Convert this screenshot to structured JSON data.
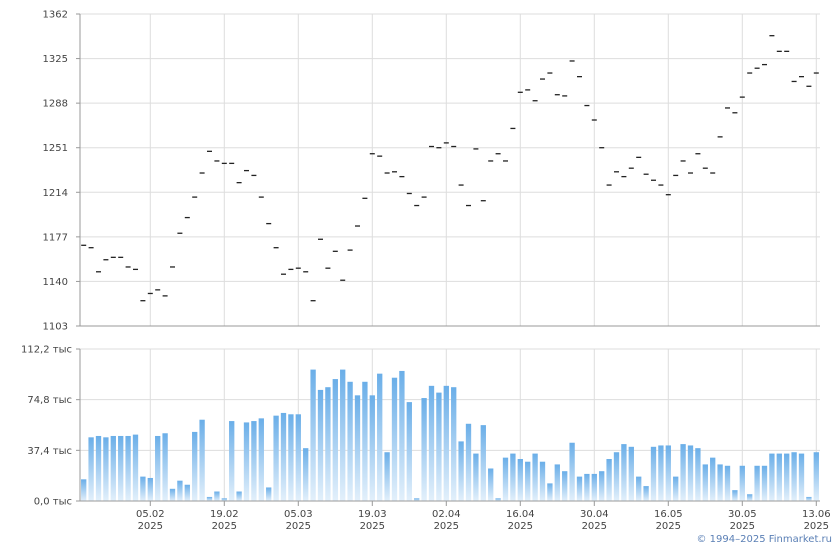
{
  "copyright": "© 1994–2025 Finmarket.ru",
  "colors": {
    "grid": "#dddddd",
    "axis": "#999999",
    "price_mark": "#222222",
    "bar_top": "#6aaee8",
    "bar_bottom": "#e3f0fb"
  },
  "chart_data": [
    {
      "type": "scatter",
      "ylim": [
        1103,
        1362
      ],
      "y_ticks": [
        "1362",
        "1325",
        "1288",
        "1251",
        "1214",
        "1177",
        "1140",
        "1103"
      ],
      "y_tick_values": [
        1362,
        1325,
        1288,
        1251,
        1214,
        1177,
        1140,
        1103
      ],
      "grid": true,
      "values": [
        1170,
        1168,
        1148,
        1158,
        1160,
        1160,
        1152,
        1150,
        1124,
        1130,
        1133,
        1128,
        1152,
        1180,
        1193,
        1210,
        1230,
        1248,
        1240,
        1238,
        1238,
        1222,
        1232,
        1228,
        1210,
        1188,
        1168,
        1146,
        1150,
        1151,
        1148,
        1124,
        1175,
        1151,
        1165,
        1141,
        1166,
        1186,
        1209,
        1246,
        1244,
        1230,
        1231,
        1227,
        1213,
        1203,
        1210,
        1252,
        1251,
        1255,
        1252,
        1220,
        1203,
        1250,
        1207,
        1240,
        1246,
        1240,
        1267,
        1297,
        1299,
        1290,
        1308,
        1313,
        1295,
        1294,
        1323,
        1310,
        1286,
        1274,
        1251,
        1220,
        1231,
        1227,
        1234,
        1243,
        1229,
        1224,
        1220,
        1212,
        1228,
        1240,
        1230,
        1246,
        1234,
        1230,
        1260,
        1284,
        1280,
        1293,
        1313,
        1317,
        1320,
        1344,
        1331,
        1331,
        1306,
        1310,
        1302,
        1313
      ]
    },
    {
      "type": "bar",
      "ylim": [
        0,
        112.2
      ],
      "y_ticks": [
        "112,2 тыс",
        "74,8 тыс",
        "37,4 тыс",
        "0,0 тыс"
      ],
      "y_tick_values": [
        112.2,
        74.8,
        37.4,
        0
      ],
      "x_ticks": [
        {
          "day": "05.02",
          "year": "2025"
        },
        {
          "day": "19.02",
          "year": "2025"
        },
        {
          "day": "05.03",
          "year": "2025"
        },
        {
          "day": "19.03",
          "year": "2025"
        },
        {
          "day": "02.04",
          "year": "2025"
        },
        {
          "day": "16.04",
          "year": "2025"
        },
        {
          "day": "30.04",
          "year": "2025"
        },
        {
          "day": "16.05",
          "year": "2025"
        },
        {
          "day": "30.05",
          "year": "2025"
        },
        {
          "day": "13.06",
          "year": "2025"
        }
      ],
      "x_tick_index": [
        9.5,
        19.5,
        29.5,
        39.5,
        49.5,
        59.5,
        69.5,
        79.5,
        89.5,
        99.5
      ],
      "grid": true,
      "values": [
        16,
        47,
        48,
        47,
        48,
        48,
        48,
        49,
        18,
        17,
        48,
        50,
        9,
        15,
        12,
        51,
        60,
        3,
        7,
        2,
        59,
        7,
        58,
        59,
        61,
        10,
        63,
        65,
        64,
        64,
        39,
        97,
        82,
        84,
        90,
        97,
        88,
        78,
        88,
        78,
        94,
        36,
        91,
        96,
        73,
        2,
        76,
        85,
        80,
        85,
        84,
        44,
        57,
        35,
        56,
        24,
        2,
        32,
        35,
        31,
        29,
        35,
        29,
        13,
        27,
        22,
        43,
        18,
        20,
        20,
        22,
        31,
        36,
        42,
        40,
        18,
        11,
        40,
        41,
        41,
        18,
        42,
        41,
        39,
        27,
        32,
        27,
        26,
        8,
        26,
        5,
        26,
        26,
        35,
        35,
        35,
        36,
        35,
        3,
        36
      ]
    }
  ]
}
